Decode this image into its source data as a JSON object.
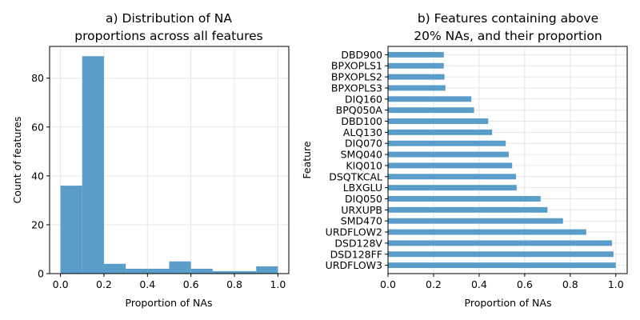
{
  "chart_data": [
    {
      "type": "bar",
      "subtype": "histogram",
      "title_lines": [
        "a) Distribution of NA",
        "proportions across all features"
      ],
      "xlabel": "Proportion of NAs",
      "ylabel": "Count of features",
      "xlim": [
        -0.05,
        1.05
      ],
      "ylim": [
        0,
        93
      ],
      "grid": true,
      "color": "#5b9dc9",
      "bin_edges": [
        0.0,
        0.1,
        0.2,
        0.3,
        0.4,
        0.5,
        0.6,
        0.7,
        0.8,
        0.9,
        1.0
      ],
      "values": [
        36,
        89,
        4,
        2,
        2,
        5,
        2,
        1,
        1,
        3
      ],
      "xticks": [
        "0.0",
        "0.2",
        "0.4",
        "0.6",
        "0.8",
        "1.0"
      ],
      "yticks": [
        "0",
        "20",
        "40",
        "60",
        "80"
      ]
    },
    {
      "type": "bar",
      "orientation": "horizontal",
      "title_lines": [
        "b) Features containing above",
        "20% NAs, and their proportion"
      ],
      "xlabel": "Proportion of NAs",
      "ylabel": "Feature",
      "xlim": [
        0,
        1.05
      ],
      "grid": true,
      "color": "#5b9dc9",
      "categories": [
        "DBD900",
        "BPXOPLS1",
        "BPXOPLS2",
        "BPXOPLS3",
        "DIQ160",
        "BPQ050A",
        "DBD100",
        "ALQ130",
        "DIQ070",
        "SMQ040",
        "KIQ010",
        "DSQTKCAL",
        "LBXGLU",
        "DIQ050",
        "URXUPB",
        "SMD470",
        "URDFLOW2",
        "DSD128V",
        "DSD128FF",
        "URDFLOW3"
      ],
      "values": [
        0.245,
        0.245,
        0.248,
        0.252,
        0.366,
        0.378,
        0.44,
        0.457,
        0.517,
        0.53,
        0.545,
        0.562,
        0.565,
        0.67,
        0.7,
        0.768,
        0.87,
        0.983,
        0.99,
        1.0
      ],
      "xticks": [
        "0.0",
        "0.2",
        "0.4",
        "0.6",
        "0.8",
        "1.0"
      ]
    }
  ]
}
